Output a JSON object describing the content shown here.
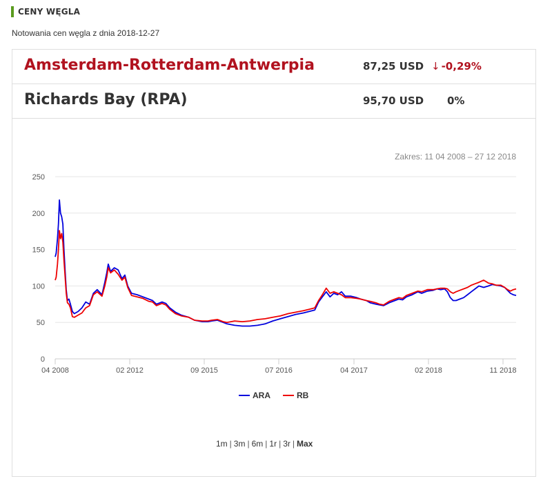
{
  "header": {
    "section_title": "CENY WĘGLA",
    "subtitle": "Notowania cen węgla z dnia 2018-12-27"
  },
  "quotes": [
    {
      "name": "Amsterdam-Rotterdam-Antwerpia",
      "price": "87,25 USD",
      "change": "-0,29%",
      "direction": "down",
      "color": "#b1121f"
    },
    {
      "name": "Richards Bay (RPA)",
      "price": "95,70 USD",
      "change": "0%",
      "direction": "flat",
      "color": "#333333"
    }
  ],
  "range_note": "Zakres: 11 04 2008 – 27 12 2018",
  "range_options": [
    "1m",
    "3m",
    "6m",
    "1r",
    "3r",
    "Max"
  ],
  "range_selected": "Max",
  "chart_data": {
    "type": "line",
    "title": "",
    "xlabel": "",
    "ylabel": "",
    "ylim": [
      0,
      250
    ],
    "yticks": [
      0,
      50,
      100,
      150,
      200,
      250
    ],
    "xticks": [
      "04 2008",
      "02 2012",
      "09 2015",
      "07 2016",
      "04 2017",
      "02 2018",
      "11 2018"
    ],
    "grid": true,
    "legend_position": "bottom",
    "series": [
      {
        "name": "ARA",
        "color": "#0000dd",
        "points": [
          [
            0,
            140
          ],
          [
            0.05,
            145
          ],
          [
            0.12,
            165
          ],
          [
            0.17,
            185
          ],
          [
            0.22,
            218
          ],
          [
            0.28,
            200
          ],
          [
            0.34,
            195
          ],
          [
            0.4,
            185
          ],
          [
            0.46,
            150
          ],
          [
            0.52,
            120
          ],
          [
            0.58,
            95
          ],
          [
            0.64,
            80
          ],
          [
            0.72,
            82
          ],
          [
            0.8,
            75
          ],
          [
            0.9,
            65
          ],
          [
            1.0,
            62
          ],
          [
            1.2,
            65
          ],
          [
            1.4,
            70
          ],
          [
            1.6,
            78
          ],
          [
            1.8,
            75
          ],
          [
            2.0,
            90
          ],
          [
            2.2,
            95
          ],
          [
            2.45,
            88
          ],
          [
            2.6,
            105
          ],
          [
            2.7,
            118
          ],
          [
            2.78,
            130
          ],
          [
            2.9,
            120
          ],
          [
            3.1,
            125
          ],
          [
            3.3,
            122
          ],
          [
            3.5,
            110
          ],
          [
            3.65,
            115
          ],
          [
            3.8,
            100
          ],
          [
            4.0,
            90
          ],
          [
            4.3,
            88
          ],
          [
            4.6,
            85
          ],
          [
            4.9,
            82
          ],
          [
            5.1,
            80
          ],
          [
            5.3,
            75
          ],
          [
            5.6,
            78
          ],
          [
            5.8,
            76
          ],
          [
            6.0,
            70
          ],
          [
            6.3,
            64
          ],
          [
            6.6,
            60
          ],
          [
            7.0,
            57
          ],
          [
            7.3,
            53
          ],
          [
            7.7,
            51
          ],
          [
            8.0,
            51
          ],
          [
            8.2,
            52
          ],
          [
            8.5,
            53
          ],
          [
            8.8,
            50
          ],
          [
            9.0,
            48
          ],
          [
            9.4,
            46
          ],
          [
            9.8,
            45
          ],
          [
            10.2,
            45
          ],
          [
            10.6,
            46
          ],
          [
            11.0,
            48
          ],
          [
            11.4,
            52
          ],
          [
            11.8,
            55
          ],
          [
            12.2,
            58
          ],
          [
            12.6,
            61
          ],
          [
            13.0,
            63
          ],
          [
            13.3,
            65
          ],
          [
            13.6,
            67
          ],
          [
            13.8,
            78
          ],
          [
            14.0,
            85
          ],
          [
            14.2,
            92
          ],
          [
            14.4,
            85
          ],
          [
            14.6,
            90
          ],
          [
            14.8,
            88
          ],
          [
            15.0,
            92
          ],
          [
            15.2,
            86
          ],
          [
            15.5,
            86
          ],
          [
            15.8,
            84
          ],
          [
            16.0,
            82
          ],
          [
            16.3,
            80
          ],
          [
            16.5,
            77
          ],
          [
            16.8,
            75
          ],
          [
            17.0,
            74
          ],
          [
            17.2,
            73
          ],
          [
            17.5,
            77
          ],
          [
            17.8,
            80
          ],
          [
            18.0,
            82
          ],
          [
            18.2,
            81
          ],
          [
            18.4,
            85
          ],
          [
            18.7,
            88
          ],
          [
            19.0,
            92
          ],
          [
            19.2,
            90
          ],
          [
            19.5,
            93
          ],
          [
            19.8,
            94
          ],
          [
            20.0,
            96
          ],
          [
            20.2,
            95
          ],
          [
            20.4,
            96
          ],
          [
            20.55,
            92
          ],
          [
            20.7,
            84
          ],
          [
            20.85,
            80
          ],
          [
            21.0,
            80
          ],
          [
            21.2,
            82
          ],
          [
            21.4,
            84
          ],
          [
            21.6,
            88
          ],
          [
            21.8,
            92
          ],
          [
            22.0,
            96
          ],
          [
            22.2,
            100
          ],
          [
            22.45,
            98
          ],
          [
            22.7,
            100
          ],
          [
            22.9,
            102
          ],
          [
            23.1,
            101
          ],
          [
            23.35,
            100
          ],
          [
            23.55,
            98
          ],
          [
            23.7,
            94
          ],
          [
            23.85,
            90
          ],
          [
            24.0,
            88
          ],
          [
            24.15,
            87
          ]
        ]
      },
      {
        "name": "RB",
        "color": "#ee0000",
        "points": [
          [
            0,
            108
          ],
          [
            0.05,
            112
          ],
          [
            0.12,
            130
          ],
          [
            0.17,
            150
          ],
          [
            0.22,
            176
          ],
          [
            0.28,
            165
          ],
          [
            0.34,
            172
          ],
          [
            0.4,
            160
          ],
          [
            0.46,
            135
          ],
          [
            0.52,
            112
          ],
          [
            0.58,
            90
          ],
          [
            0.64,
            77
          ],
          [
            0.72,
            75
          ],
          [
            0.8,
            70
          ],
          [
            0.9,
            58
          ],
          [
            1.0,
            57
          ],
          [
            1.2,
            60
          ],
          [
            1.4,
            63
          ],
          [
            1.6,
            70
          ],
          [
            1.8,
            73
          ],
          [
            2.0,
            88
          ],
          [
            2.2,
            92
          ],
          [
            2.45,
            86
          ],
          [
            2.6,
            100
          ],
          [
            2.7,
            112
          ],
          [
            2.78,
            125
          ],
          [
            2.9,
            118
          ],
          [
            3.1,
            122
          ],
          [
            3.3,
            116
          ],
          [
            3.5,
            108
          ],
          [
            3.65,
            112
          ],
          [
            3.8,
            98
          ],
          [
            4.0,
            87
          ],
          [
            4.3,
            85
          ],
          [
            4.6,
            83
          ],
          [
            4.9,
            79
          ],
          [
            5.1,
            78
          ],
          [
            5.3,
            73
          ],
          [
            5.6,
            76
          ],
          [
            5.8,
            74
          ],
          [
            6.0,
            68
          ],
          [
            6.3,
            62
          ],
          [
            6.6,
            59
          ],
          [
            7.0,
            57
          ],
          [
            7.3,
            53
          ],
          [
            7.7,
            52
          ],
          [
            8.0,
            52
          ],
          [
            8.2,
            53
          ],
          [
            8.5,
            54
          ],
          [
            8.8,
            51
          ],
          [
            9.0,
            50
          ],
          [
            9.4,
            52
          ],
          [
            9.8,
            51
          ],
          [
            10.2,
            52
          ],
          [
            10.6,
            54
          ],
          [
            11.0,
            55
          ],
          [
            11.4,
            57
          ],
          [
            11.8,
            59
          ],
          [
            12.2,
            62
          ],
          [
            12.6,
            64
          ],
          [
            13.0,
            66
          ],
          [
            13.3,
            68
          ],
          [
            13.6,
            70
          ],
          [
            13.8,
            80
          ],
          [
            14.0,
            88
          ],
          [
            14.2,
            97
          ],
          [
            14.4,
            90
          ],
          [
            14.6,
            92
          ],
          [
            14.8,
            90
          ],
          [
            15.0,
            88
          ],
          [
            15.2,
            84
          ],
          [
            15.5,
            84
          ],
          [
            15.8,
            83
          ],
          [
            16.0,
            82
          ],
          [
            16.3,
            80
          ],
          [
            16.5,
            79
          ],
          [
            16.8,
            77
          ],
          [
            17.0,
            75
          ],
          [
            17.2,
            74
          ],
          [
            17.5,
            79
          ],
          [
            17.8,
            82
          ],
          [
            18.0,
            84
          ],
          [
            18.2,
            83
          ],
          [
            18.4,
            87
          ],
          [
            18.7,
            90
          ],
          [
            19.0,
            93
          ],
          [
            19.2,
            92
          ],
          [
            19.5,
            95
          ],
          [
            19.8,
            95
          ],
          [
            20.0,
            96
          ],
          [
            20.2,
            97
          ],
          [
            20.4,
            97
          ],
          [
            20.55,
            96
          ],
          [
            20.7,
            92
          ],
          [
            20.85,
            90
          ],
          [
            21.0,
            92
          ],
          [
            21.2,
            94
          ],
          [
            21.4,
            96
          ],
          [
            21.6,
            98
          ],
          [
            21.8,
            101
          ],
          [
            22.0,
            103
          ],
          [
            22.2,
            105
          ],
          [
            22.45,
            108
          ],
          [
            22.7,
            104
          ],
          [
            22.9,
            103
          ],
          [
            23.1,
            101
          ],
          [
            23.35,
            101
          ],
          [
            23.55,
            98
          ],
          [
            23.7,
            95
          ],
          [
            23.85,
            93
          ],
          [
            24.0,
            95
          ],
          [
            24.15,
            96
          ]
        ]
      }
    ]
  }
}
